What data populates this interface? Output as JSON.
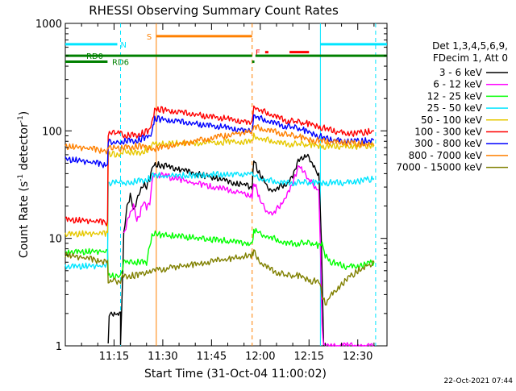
{
  "chart_data": {
    "type": "line",
    "title": "RHESSI Observing Summary Count Rates",
    "xlabel": "Start Time (31-Oct-04 11:00:02)",
    "ylabel_main": "Count Rate (s",
    "ylabel_sup": "-1",
    "ylabel_rest": " detector",
    "ylabel_sup2": "-1",
    "ylabel_end": ")",
    "y_scale": "log",
    "ylim": [
      1,
      1000
    ],
    "xlim_minutes": [
      0,
      99
    ],
    "x_ticks": [
      {
        "label": "11:15",
        "value": 15
      },
      {
        "label": "11:30",
        "value": 30
      },
      {
        "label": "11:45",
        "value": 45
      },
      {
        "label": "12:00",
        "value": 60
      },
      {
        "label": "12:15",
        "value": 75
      },
      {
        "label": "12:30",
        "value": 90
      }
    ],
    "y_ticks": [
      {
        "label": "1",
        "value": 1
      },
      {
        "label": "10",
        "value": 10
      },
      {
        "label": "100",
        "value": 100
      },
      {
        "label": "1000",
        "value": 1000
      }
    ],
    "legend_header": [
      "Det 1,3,4,5,6,9,",
      "FDecim 1, Att 0"
    ],
    "legend_position": "right",
    "footer_date": "22-Oct-2021 07:44",
    "flags": [
      {
        "label": "N",
        "color": "#00e5ff",
        "value": 640,
        "segments": [
          [
            0,
            16
          ],
          [
            78.5,
            99
          ]
        ]
      },
      {
        "label": "S",
        "color": "#ff8000",
        "value": 760,
        "segments": [
          [
            28,
            57.5
          ]
        ]
      },
      {
        "label": "F",
        "color": "#ff0000",
        "value": 540,
        "segments": [
          [
            61.5,
            62.5
          ],
          [
            69,
            75
          ]
        ]
      },
      {
        "label": "RD0",
        "color": "#008000",
        "value": 500,
        "segments": [
          [
            0,
            57.5
          ],
          [
            58.5,
            99
          ]
        ]
      },
      {
        "label": "RD6",
        "color": "#008000",
        "value": 440,
        "segments": [
          [
            0,
            13
          ],
          [
            57.5,
            58.2
          ]
        ]
      }
    ],
    "event_lines": [
      {
        "name": "night-start",
        "color": "#00e5ff",
        "value": 17,
        "style": "dashed"
      },
      {
        "name": "saa-start",
        "color": "#ff8000",
        "value": 28,
        "style": "solid"
      },
      {
        "name": "saa-end",
        "color": "#ff8000",
        "value": 57.5,
        "style": "dashed"
      },
      {
        "name": "night-end",
        "color": "#00e5ff",
        "value": 78.5,
        "style": "solid"
      },
      {
        "name": "edge-line",
        "color": "#00e5ff",
        "value": 95.5,
        "style": "dashed"
      }
    ],
    "series": [
      {
        "name": "3 - 6 keV",
        "color": "#000000",
        "points": [
          [
            13.2,
            1
          ],
          [
            13.5,
            2
          ],
          [
            17,
            2
          ],
          [
            17,
            1
          ],
          [
            18,
            11
          ],
          [
            19,
            20
          ],
          [
            20,
            25
          ],
          [
            21,
            18
          ],
          [
            22,
            22
          ],
          [
            23,
            28
          ],
          [
            24,
            32
          ],
          [
            25,
            30
          ],
          [
            26,
            35
          ],
          [
            27,
            50
          ],
          [
            57.5,
            30
          ],
          [
            58,
            55
          ],
          [
            59,
            45
          ],
          [
            60,
            38
          ],
          [
            61,
            35
          ],
          [
            62,
            30
          ],
          [
            64,
            28
          ],
          [
            66,
            30
          ],
          [
            68,
            32
          ],
          [
            70,
            38
          ],
          [
            72,
            55
          ],
          [
            74,
            60
          ],
          [
            76,
            50
          ],
          [
            77,
            42
          ],
          [
            78,
            40
          ],
          [
            78.8,
            10
          ],
          [
            79.5,
            1
          ]
        ]
      },
      {
        "name": "6 - 12 keV",
        "color": "#ff00ff",
        "points": [
          [
            18,
            11
          ],
          [
            19,
            14
          ],
          [
            20,
            17
          ],
          [
            21,
            20
          ],
          [
            22,
            15
          ],
          [
            23,
            17
          ],
          [
            24,
            22
          ],
          [
            25,
            19
          ],
          [
            26,
            22
          ],
          [
            27,
            40
          ],
          [
            57.5,
            25
          ],
          [
            58,
            34
          ],
          [
            59,
            28
          ],
          [
            60,
            22
          ],
          [
            62,
            18
          ],
          [
            64,
            17
          ],
          [
            66,
            20
          ],
          [
            68,
            25
          ],
          [
            70,
            32
          ],
          [
            72,
            50
          ],
          [
            74,
            38
          ],
          [
            76,
            32
          ],
          [
            78,
            28
          ],
          [
            78.5,
            8
          ],
          [
            79,
            1.5
          ],
          [
            79.5,
            1
          ],
          [
            95,
            1
          ]
        ]
      },
      {
        "name": "12 - 25 keV",
        "color": "#00ff00",
        "points": [
          [
            0,
            7.5
          ],
          [
            13,
            7.5
          ],
          [
            13.2,
            4.5
          ],
          [
            17,
            4.5
          ],
          [
            18,
            6
          ],
          [
            25,
            6
          ],
          [
            26,
            9
          ],
          [
            27,
            11
          ],
          [
            57.5,
            9
          ],
          [
            58,
            12
          ],
          [
            60,
            11
          ],
          [
            64,
            10
          ],
          [
            68,
            9
          ],
          [
            72,
            9
          ],
          [
            76,
            9
          ],
          [
            78,
            8.5
          ],
          [
            79,
            9
          ],
          [
            80,
            7
          ],
          [
            82,
            6
          ],
          [
            86,
            5.5
          ],
          [
            90,
            5.5
          ],
          [
            95,
            6
          ]
        ]
      },
      {
        "name": "25 - 50 keV",
        "color": "#00e5ff",
        "points": [
          [
            0,
            5.5
          ],
          [
            13,
            5.5
          ],
          [
            13.2,
            33
          ],
          [
            17,
            33
          ],
          [
            18,
            32
          ],
          [
            22,
            34
          ],
          [
            26,
            36
          ],
          [
            27,
            38
          ],
          [
            57.5,
            40
          ],
          [
            58,
            38
          ],
          [
            60,
            36
          ],
          [
            64,
            34
          ],
          [
            68,
            33
          ],
          [
            72,
            33
          ],
          [
            76,
            33
          ],
          [
            80,
            33
          ],
          [
            86,
            33
          ],
          [
            90,
            34
          ],
          [
            95,
            36
          ]
        ]
      },
      {
        "name": "50 - 100 keV",
        "color": "#e6c800",
        "points": [
          [
            0,
            11
          ],
          [
            13,
            11
          ],
          [
            13.2,
            60
          ],
          [
            17,
            60
          ],
          [
            18,
            65
          ],
          [
            22,
            62
          ],
          [
            26,
            68
          ],
          [
            27,
            75
          ],
          [
            57.5,
            80
          ],
          [
            58,
            90
          ],
          [
            60,
            85
          ],
          [
            64,
            80
          ],
          [
            68,
            76
          ],
          [
            72,
            75
          ],
          [
            76,
            74
          ],
          [
            80,
            72
          ],
          [
            86,
            72
          ],
          [
            90,
            72
          ],
          [
            95,
            74
          ]
        ]
      },
      {
        "name": "100 - 300 keV",
        "color": "#ff0000",
        "points": [
          [
            0,
            15
          ],
          [
            13,
            14
          ],
          [
            13.2,
            95
          ],
          [
            17,
            95
          ],
          [
            18,
            90
          ],
          [
            22,
            92
          ],
          [
            26,
            100
          ],
          [
            27,
            130
          ],
          [
            27.5,
            160
          ],
          [
            57.5,
            120
          ],
          [
            58,
            170
          ],
          [
            60,
            155
          ],
          [
            64,
            140
          ],
          [
            68,
            125
          ],
          [
            72,
            120
          ],
          [
            76,
            115
          ],
          [
            80,
            105
          ],
          [
            86,
            95
          ],
          [
            90,
            95
          ],
          [
            95,
            100
          ]
        ]
      },
      {
        "name": "300 - 800 keV",
        "color": "#0000ff",
        "points": [
          [
            0,
            55
          ],
          [
            13,
            48
          ],
          [
            13.2,
            80
          ],
          [
            17,
            78
          ],
          [
            18,
            80
          ],
          [
            22,
            82
          ],
          [
            26,
            88
          ],
          [
            27,
            110
          ],
          [
            27.5,
            130
          ],
          [
            57.5,
            100
          ],
          [
            58,
            140
          ],
          [
            60,
            130
          ],
          [
            64,
            120
          ],
          [
            68,
            110
          ],
          [
            72,
            105
          ],
          [
            76,
            95
          ],
          [
            80,
            85
          ],
          [
            86,
            80
          ],
          [
            90,
            80
          ],
          [
            95,
            82
          ]
        ]
      },
      {
        "name": "800 - 7000 keV",
        "color": "#ff8000",
        "points": [
          [
            0,
            72
          ],
          [
            13,
            65
          ],
          [
            13.2,
            70
          ],
          [
            17,
            68
          ],
          [
            18,
            70
          ],
          [
            22,
            72
          ],
          [
            26,
            70
          ],
          [
            27,
            68
          ],
          [
            57.5,
            100
          ],
          [
            58,
            110
          ],
          [
            60,
            105
          ],
          [
            64,
            100
          ],
          [
            68,
            92
          ],
          [
            72,
            88
          ],
          [
            76,
            82
          ],
          [
            80,
            80
          ],
          [
            86,
            78
          ],
          [
            90,
            76
          ],
          [
            95,
            75
          ]
        ]
      },
      {
        "name": "7000 - 15000 keV",
        "color": "#808000",
        "points": [
          [
            0,
            7
          ],
          [
            13,
            6
          ],
          [
            13.2,
            4
          ],
          [
            17,
            4
          ],
          [
            18,
            4.5
          ],
          [
            22,
            4.5
          ],
          [
            26,
            5
          ],
          [
            27,
            5
          ],
          [
            57.5,
            7
          ],
          [
            58,
            7.5
          ],
          [
            60,
            6
          ],
          [
            64,
            5
          ],
          [
            68,
            4.5
          ],
          [
            72,
            4.5
          ],
          [
            76,
            4
          ],
          [
            78,
            4
          ],
          [
            79,
            3
          ],
          [
            80,
            2.5
          ],
          [
            82,
            3
          ],
          [
            86,
            4
          ],
          [
            90,
            5
          ],
          [
            95,
            6
          ]
        ]
      }
    ]
  }
}
